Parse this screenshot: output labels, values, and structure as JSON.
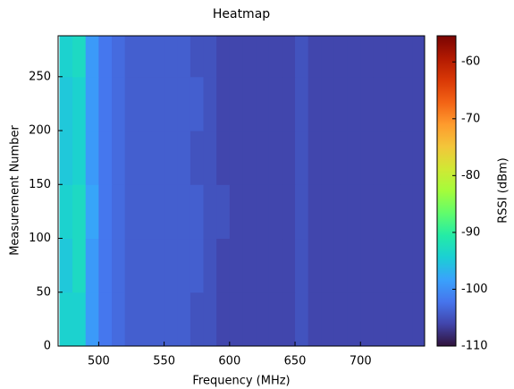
{
  "chart_data": {
    "type": "heatmap",
    "title": "Heatmap",
    "x_label": "Frequency (MHz)",
    "y_label": "Measurement Number",
    "colorbar_label": "RSSI (dBm)",
    "x": [
      470,
      480,
      490,
      500,
      510,
      520,
      530,
      540,
      550,
      560,
      570,
      580,
      590,
      600,
      610,
      620,
      630,
      640,
      650,
      660,
      670,
      680,
      690,
      700,
      710,
      720,
      730,
      740,
      750
    ],
    "y": [
      0,
      50,
      100,
      150,
      200,
      250,
      290
    ],
    "z": [
      [
        -94,
        -94,
        -99,
        -102,
        -103,
        -104,
        -104,
        -104,
        -104,
        -104,
        -105,
        -105,
        -106,
        -106,
        -106,
        -106,
        -106,
        -106,
        -105,
        -106,
        -106,
        -106,
        -106,
        -106,
        -106,
        -106,
        -106,
        -106
      ],
      [
        -95,
        -93,
        -99,
        -102,
        -103,
        -104,
        -104,
        -104,
        -104,
        -104,
        -104,
        -105,
        -106,
        -106,
        -106,
        -106,
        -106,
        -106,
        -105,
        -106,
        -106,
        -106,
        -106,
        -106,
        -106,
        -106,
        -106,
        -106
      ],
      [
        -94,
        -93,
        -98,
        -102,
        -103,
        -104,
        -104,
        -104,
        -104,
        -104,
        -104,
        -105,
        -105,
        -106,
        -106,
        -106,
        -106,
        -106,
        -105,
        -106,
        -106,
        -106,
        -106,
        -106,
        -106,
        -106,
        -106,
        -106
      ],
      [
        -95,
        -94,
        -99,
        -102,
        -103,
        -104,
        -104,
        -104,
        -104,
        -104,
        -105,
        -105,
        -106,
        -106,
        -106,
        -106,
        -106,
        -106,
        -105,
        -106,
        -106,
        -106,
        -106,
        -106,
        -106,
        -106,
        -106,
        -106
      ],
      [
        -95,
        -94,
        -99,
        -102,
        -103,
        -104,
        -104,
        -104,
        -104,
        -104,
        -104,
        -105,
        -106,
        -106,
        -106,
        -106,
        -106,
        -106,
        -105,
        -106,
        -106,
        -106,
        -106,
        -106,
        -106,
        -106,
        -106,
        -106
      ],
      [
        -94,
        -93,
        -99,
        -102,
        -103,
        -104,
        -104,
        -104,
        -104,
        -104,
        -105,
        -105,
        -106,
        -106,
        -106,
        -106,
        -106,
        -106,
        -105,
        -106,
        -106,
        -106,
        -106,
        -106,
        -106,
        -106,
        -106,
        -106
      ]
    ],
    "xlim": [
      469,
      749
    ],
    "xticks": [
      500,
      550,
      600,
      650,
      700
    ],
    "ylim": [
      0,
      288
    ],
    "yticks": [
      0,
      50,
      100,
      150,
      200,
      250
    ],
    "clim": [
      -110,
      -55.4
    ],
    "cticks": [
      -110,
      -100,
      -90,
      -80,
      -70,
      -60
    ],
    "colormap": [
      "#30123b",
      "#4145ab",
      "#4675ed",
      "#39a2fc",
      "#1bcfd4",
      "#24eca6",
      "#61fc6c",
      "#a4fc3b",
      "#d1e834",
      "#f3c63a",
      "#fe9b2d",
      "#f36315",
      "#d93806",
      "#b11901",
      "#7a0403"
    ]
  }
}
